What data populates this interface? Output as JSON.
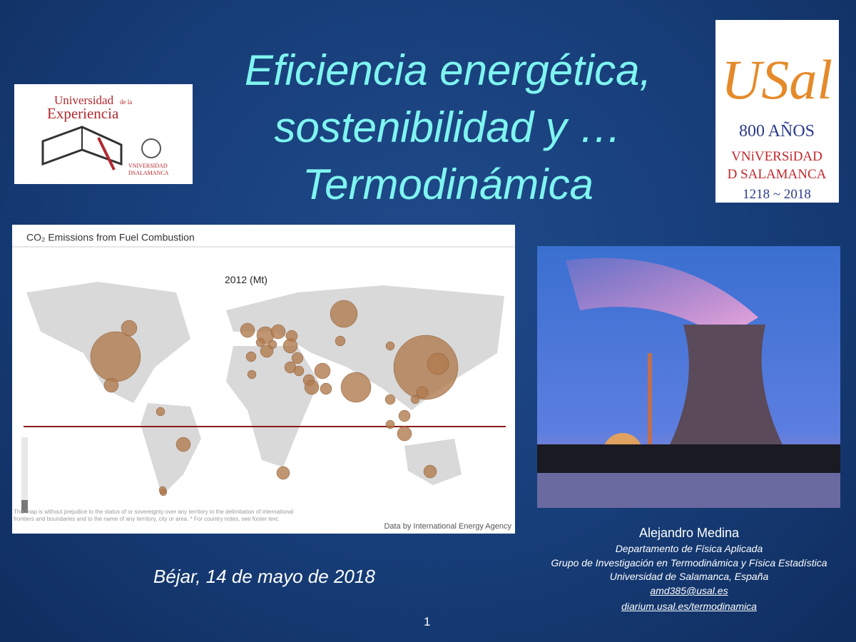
{
  "slide": {
    "title": [
      "Eficiencia energética,",
      "sostenibilidad y …",
      "Termodinámica"
    ],
    "logo_left": {
      "line1": "Universidad",
      "line1_small": "de la",
      "line2": "Experiencia",
      "line3": "VNIVERSIDAD",
      "line4": "DSALAMANCA"
    },
    "logo_right": {
      "mark": "USal",
      "line1": "800 AÑOS",
      "line2": "VNiVERSiDAD",
      "line3": "D SALAMANCA",
      "line4": "1218 ~ 2018"
    },
    "map": {
      "title": "CO₂ Emissions from Fuel Combustion",
      "year": "2012 (Mt)",
      "note": "This map is without prejudice to the status of or sovereignty over any territory to the delimitation of international frontiers and boundaries and to the name of any territory, city or area. * For country notes, see footer text.",
      "source": "Data by International Energy Agency"
    },
    "author": {
      "name": "Alejandro Medina",
      "lines": [
        "Departamento de Física Aplicada",
        "Grupo de Investigación en Termodinámica y Física Estadística",
        "Universidad de Salamanca, España"
      ],
      "email": "amd385@usal.es",
      "web": "diarium.usal.es/termodinamica"
    },
    "date": "Béjar, 14 de mayo de 2018",
    "page": "1"
  }
}
